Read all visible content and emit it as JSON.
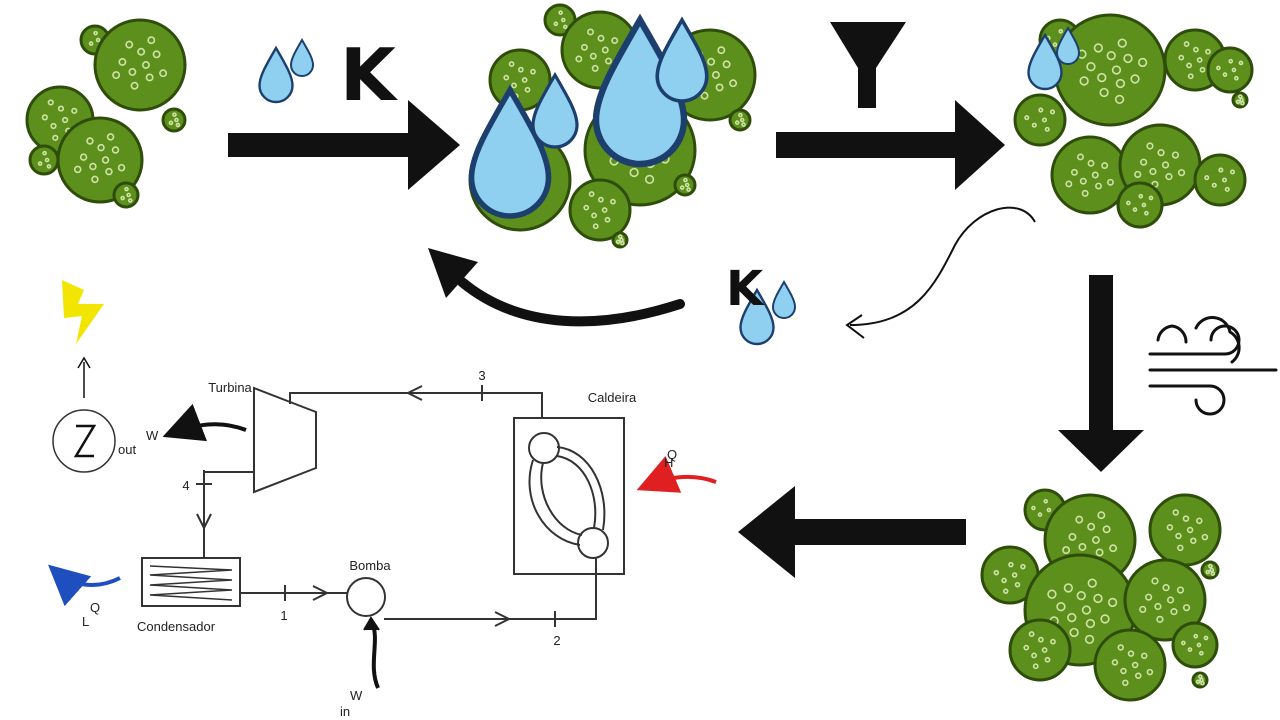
{
  "diagram": {
    "catalyst_symbol": "K",
    "rankine_cycle": {
      "turbine_label": "Turbina",
      "boiler_label": "Caldeira",
      "condenser_label": "Condensador",
      "pump_label": "Bomba",
      "work_out_label": "W",
      "work_out_sub": "out",
      "work_in_label": "W",
      "work_in_sub": "in",
      "heat_in_label": "Q",
      "heat_in_sub": "H",
      "heat_out_label": "Q",
      "heat_out_sub": "L",
      "state_points": [
        "1",
        "2",
        "3",
        "4"
      ]
    },
    "colors": {
      "algae_fill": "#5c8f1c",
      "algae_stroke": "#2f4d0a",
      "algae_spot": "#cfe3a6",
      "drop_fill": "#8fd0f0",
      "drop_stroke": "#1c3f6e",
      "heat_in_arrow": "#e02020",
      "heat_out_arrow": "#1f4fbf",
      "lightning": "#f2e600"
    },
    "icons": [
      "algae-cluster-icon",
      "water-drops-icon",
      "funnel-filter-icon",
      "wind-icon",
      "lightning-icon",
      "generator-icon"
    ]
  }
}
